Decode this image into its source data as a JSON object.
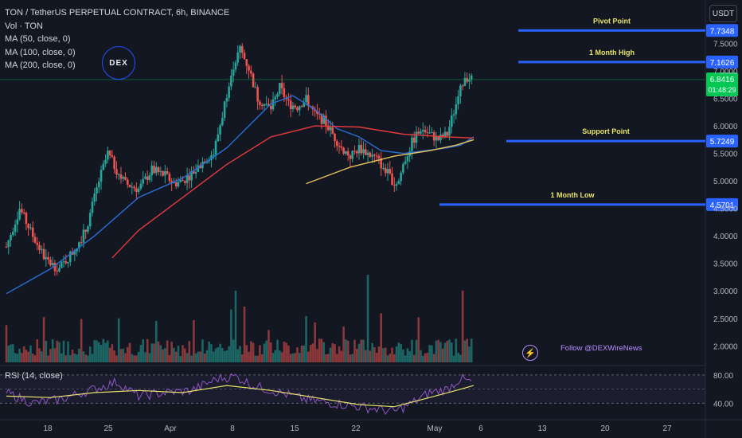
{
  "header": {
    "title": "TON / TetherUS PERPETUAL CONTRACT, 6h, BINANCE",
    "indicators": [
      "Vol · TON",
      "MA (50, close, 0)",
      "MA (100, close, 0)",
      "MA (200, close, 0)"
    ],
    "currency_button": "USDT"
  },
  "watermark": {
    "logo_text": "DEX",
    "follow_text": "Follow @DEXWireNews"
  },
  "rsi_panel": {
    "label": "RSI (14, close)"
  },
  "colors": {
    "background": "#131722",
    "up": "#26a69a",
    "down": "#ef5350",
    "ma_blue": "#2a6fd6",
    "ma_red": "#e53a3a",
    "ma_yellow": "#e8c35b",
    "level_line": "#2962ff",
    "level_text": "#e8e36a",
    "rsi": "#8f57c4",
    "rsi_ma": "#e8e36a",
    "price_tag": "#00c853"
  },
  "chart_data": [
    {
      "type": "candlestick",
      "title": "TON / TetherUS PERPETUAL CONTRACT, 6h, BINANCE",
      "x_ticks": [
        "18",
        "25",
        "Apr",
        "8",
        "15",
        "22",
        "May",
        "6",
        "13",
        "20",
        "27"
      ],
      "y_ticks": [
        "7.5000",
        "7.0000",
        "6.5000",
        "6.0000",
        "5.5000",
        "5.0000",
        "4.5000",
        "4.0000",
        "3.5000",
        "3.0000",
        "2.5000",
        "2.0000"
      ],
      "ylim": [
        1.7,
        8.0
      ],
      "levels": [
        {
          "name": "Pivot Point",
          "value": "7.7348"
        },
        {
          "name": "1 Month High",
          "value": "7.1626"
        },
        {
          "name": "Support Point",
          "value": "5.7249"
        },
        {
          "name": "1 Month Low",
          "value": "4.5701"
        }
      ],
      "current_price": {
        "value": "6.8416",
        "countdown": "01:48:29"
      },
      "price_path": [
        [
          0,
          3.8
        ],
        [
          3,
          4.5
        ],
        [
          6,
          4.0
        ],
        [
          9,
          3.55
        ],
        [
          12,
          3.4
        ],
        [
          15,
          3.7
        ],
        [
          18,
          4.1
        ],
        [
          21,
          5.0
        ],
        [
          23,
          5.5
        ],
        [
          25,
          5.2
        ],
        [
          27,
          4.95
        ],
        [
          30,
          4.85
        ],
        [
          33,
          5.2
        ],
        [
          36,
          5.1
        ],
        [
          38,
          4.95
        ],
        [
          40,
          5.0
        ],
        [
          43,
          5.2
        ],
        [
          45,
          5.4
        ],
        [
          47,
          5.5
        ],
        [
          49,
          6.2
        ],
        [
          51,
          7.0
        ],
        [
          53,
          7.4
        ],
        [
          55,
          7.05
        ],
        [
          57,
          6.5
        ],
        [
          60,
          6.3
        ],
        [
          62,
          6.7
        ],
        [
          64,
          6.4
        ],
        [
          66,
          6.35
        ],
        [
          68,
          6.5
        ],
        [
          70,
          6.2
        ],
        [
          72,
          6.1
        ],
        [
          74,
          5.85
        ],
        [
          76,
          5.6
        ],
        [
          78,
          5.45
        ],
        [
          80,
          5.6
        ],
        [
          82,
          5.5
        ],
        [
          84,
          5.4
        ],
        [
          86,
          5.2
        ],
        [
          88,
          4.95
        ],
        [
          89,
          5.0
        ],
        [
          90,
          5.3
        ],
        [
          92,
          5.7
        ],
        [
          94,
          5.95
        ],
        [
          96,
          5.85
        ],
        [
          98,
          5.75
        ],
        [
          100,
          5.85
        ],
        [
          102,
          6.4
        ],
        [
          104,
          6.9
        ],
        [
          106,
          6.84
        ]
      ],
      "ma50": [
        [
          0,
          2.95
        ],
        [
          10,
          3.4
        ],
        [
          20,
          4.0
        ],
        [
          30,
          4.7
        ],
        [
          40,
          5.05
        ],
        [
          50,
          5.6
        ],
        [
          60,
          6.4
        ],
        [
          65,
          6.55
        ],
        [
          70,
          6.3
        ],
        [
          75,
          5.95
        ],
        [
          80,
          5.8
        ],
        [
          85,
          5.55
        ],
        [
          90,
          5.5
        ],
        [
          95,
          5.55
        ],
        [
          100,
          5.6
        ],
        [
          103,
          5.65
        ],
        [
          106,
          5.8
        ]
      ],
      "ma100": [
        [
          24,
          3.6
        ],
        [
          30,
          4.1
        ],
        [
          40,
          4.7
        ],
        [
          50,
          5.3
        ],
        [
          60,
          5.8
        ],
        [
          70,
          6.0
        ],
        [
          80,
          5.98
        ],
        [
          90,
          5.85
        ],
        [
          100,
          5.8
        ],
        [
          106,
          5.78
        ]
      ],
      "ma200": [
        [
          68,
          4.95
        ],
        [
          78,
          5.25
        ],
        [
          88,
          5.45
        ],
        [
          96,
          5.55
        ],
        [
          102,
          5.65
        ],
        [
          106,
          5.75
        ]
      ],
      "rsi": {
        "ticks": [
          "80.00",
          "40.00"
        ],
        "ylim": [
          20,
          90
        ],
        "values": [
          [
            0,
            55
          ],
          [
            6,
            40
          ],
          [
            12,
            45
          ],
          [
            20,
            60
          ],
          [
            25,
            70
          ],
          [
            30,
            50
          ],
          [
            36,
            55
          ],
          [
            42,
            58
          ],
          [
            48,
            75
          ],
          [
            52,
            78
          ],
          [
            56,
            65
          ],
          [
            62,
            55
          ],
          [
            68,
            45
          ],
          [
            74,
            40
          ],
          [
            80,
            35
          ],
          [
            86,
            30
          ],
          [
            88,
            28
          ],
          [
            92,
            40
          ],
          [
            96,
            55
          ],
          [
            100,
            60
          ],
          [
            103,
            75
          ],
          [
            106,
            68
          ]
        ],
        "ma": [
          [
            0,
            50
          ],
          [
            10,
            48
          ],
          [
            20,
            55
          ],
          [
            30,
            58
          ],
          [
            40,
            55
          ],
          [
            50,
            65
          ],
          [
            60,
            58
          ],
          [
            70,
            48
          ],
          [
            80,
            38
          ],
          [
            88,
            35
          ],
          [
            96,
            48
          ],
          [
            102,
            58
          ],
          [
            106,
            65
          ]
        ]
      }
    }
  ]
}
